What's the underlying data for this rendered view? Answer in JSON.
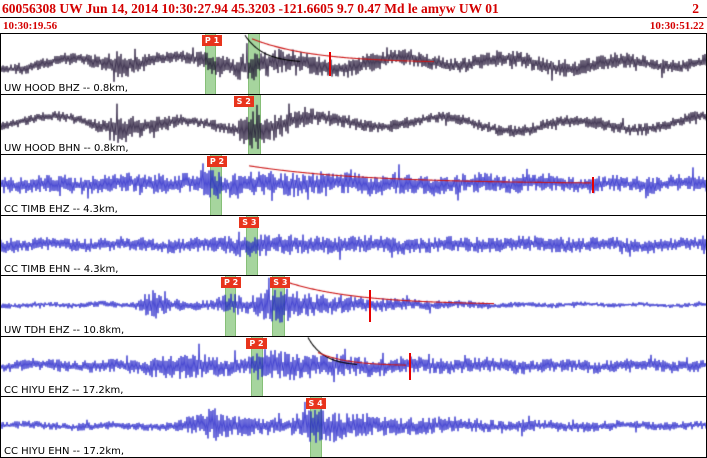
{
  "header": {
    "summary": "60056308 UW Jun 14, 2014 10:30:27.94   45.3203 -121.6605  9.7 0.47 Md le amyw UW 01",
    "page": "2"
  },
  "window": {
    "start": "10:30:19.56",
    "end": "10:30:51.22"
  },
  "colors": {
    "broadband_trace": "#190b2e",
    "shortperiod_trace": "#1f1fc8",
    "pick_band_green": "#97ce8d",
    "flag_red": "#e8341c",
    "pick_line_red": "#e80000",
    "coda_red": "#cc1414",
    "header_text_red": "#d40000"
  },
  "traces": [
    {
      "label": "UW HOOD BHZ -- 0.8km,",
      "color": "#190b2e",
      "seed": 101,
      "lf": {
        "amp": 4.5,
        "period": 110,
        "phase": 0.8
      },
      "envelope": [
        [
          0,
          5
        ],
        [
          0.1,
          6
        ],
        [
          0.145,
          7
        ],
        [
          0.165,
          14
        ],
        [
          0.185,
          10
        ],
        [
          0.21,
          7
        ],
        [
          0.27,
          6
        ],
        [
          0.295,
          12
        ],
        [
          0.33,
          10
        ],
        [
          0.355,
          15
        ],
        [
          0.4,
          11
        ],
        [
          0.47,
          9
        ],
        [
          0.55,
          8
        ],
        [
          0.65,
          7
        ],
        [
          0.78,
          8
        ],
        [
          0.9,
          7
        ],
        [
          1,
          6
        ]
      ],
      "bands": [
        {
          "x": 0.289,
          "w": 0.016
        },
        {
          "x": 0.35,
          "w": 0.018
        }
      ],
      "flags": [
        {
          "label": "P 1",
          "x": 0.285
        }
      ],
      "red_lines": [
        {
          "x": 0.467,
          "h": 0.4
        }
      ],
      "codas": [
        {
          "x0": 0.346,
          "x1": 0.425,
          "h": 0.46,
          "color": "#000000"
        },
        {
          "x0": 0.356,
          "x1": 0.615,
          "h": 0.4,
          "color": "#cc1414"
        }
      ]
    },
    {
      "label": "UW HOOD BHN -- 0.8km,",
      "color": "#190b2e",
      "seed": 102,
      "lf": {
        "amp": 5.5,
        "period": 130,
        "phase": 2.1
      },
      "envelope": [
        [
          0,
          4
        ],
        [
          0.13,
          5
        ],
        [
          0.16,
          13
        ],
        [
          0.175,
          16
        ],
        [
          0.2,
          8
        ],
        [
          0.27,
          5
        ],
        [
          0.33,
          6
        ],
        [
          0.36,
          20
        ],
        [
          0.375,
          14
        ],
        [
          0.42,
          9
        ],
        [
          0.5,
          6
        ],
        [
          0.62,
          5
        ],
        [
          0.8,
          6
        ],
        [
          1,
          5
        ]
      ],
      "bands": [
        {
          "x": 0.35,
          "w": 0.019
        }
      ],
      "flags": [
        {
          "label": "S 2",
          "x": 0.33
        }
      ],
      "red_lines": [],
      "codas": []
    },
    {
      "label": "CC TIMB EHZ -- 4.3km,",
      "color": "#1f1fc8",
      "seed": 103,
      "lf": {
        "amp": 1.5,
        "period": 70,
        "phase": 0
      },
      "envelope": [
        [
          0,
          8
        ],
        [
          0.25,
          9
        ],
        [
          0.3,
          13
        ],
        [
          0.34,
          12
        ],
        [
          0.42,
          11
        ],
        [
          0.55,
          10
        ],
        [
          0.7,
          9
        ],
        [
          0.85,
          8
        ],
        [
          1,
          8
        ]
      ],
      "bands": [
        {
          "x": 0.297,
          "w": 0.016
        }
      ],
      "flags": [
        {
          "label": "P 2",
          "x": 0.292
        }
      ],
      "red_lines": [
        {
          "x": 0.84,
          "h": 0.26
        }
      ],
      "codas": [
        {
          "x0": 0.352,
          "x1": 0.838,
          "h": 0.3,
          "color": "#cc1414"
        }
      ]
    },
    {
      "label": "CC TIMB EHN -- 4.3km,",
      "color": "#1f1fc8",
      "seed": 104,
      "lf": {
        "amp": 1.2,
        "period": 80,
        "phase": 1
      },
      "envelope": [
        [
          0,
          6
        ],
        [
          0.3,
          7
        ],
        [
          0.35,
          11
        ],
        [
          0.4,
          10
        ],
        [
          0.5,
          8
        ],
        [
          0.65,
          7
        ],
        [
          0.8,
          7
        ],
        [
          1,
          6
        ]
      ],
      "bands": [
        {
          "x": 0.348,
          "w": 0.017
        }
      ],
      "flags": [
        {
          "label": "S 3",
          "x": 0.338
        }
      ],
      "red_lines": [],
      "codas": []
    },
    {
      "label": "UW TDH EHZ -- 10.8km,",
      "color": "#1f1fc8",
      "seed": 105,
      "lf": {
        "amp": 0.8,
        "period": 60,
        "phase": 0.4
      },
      "envelope": [
        [
          0,
          2.5
        ],
        [
          0.19,
          3
        ],
        [
          0.215,
          16
        ],
        [
          0.235,
          8
        ],
        [
          0.26,
          4
        ],
        [
          0.3,
          5
        ],
        [
          0.325,
          10
        ],
        [
          0.36,
          9
        ],
        [
          0.395,
          19
        ],
        [
          0.43,
          12
        ],
        [
          0.49,
          8
        ],
        [
          0.58,
          5
        ],
        [
          0.7,
          3
        ],
        [
          0.85,
          2
        ],
        [
          1,
          2
        ]
      ],
      "bands": [
        {
          "x": 0.318,
          "w": 0.016
        },
        {
          "x": 0.384,
          "w": 0.019
        }
      ],
      "flags": [
        {
          "label": "P 2",
          "x": 0.312
        },
        {
          "label": "S 3",
          "x": 0.382
        }
      ],
      "red_lines": [
        {
          "x": 0.523,
          "h": 0.55
        }
      ],
      "codas": [
        {
          "x0": 0.4,
          "x1": 0.7,
          "h": 0.4,
          "color": "#cc1414"
        }
      ]
    },
    {
      "label": "CC HIYU EHZ -- 17.2km,",
      "color": "#1f1fc8",
      "seed": 106,
      "lf": {
        "amp": 1.3,
        "period": 75,
        "phase": 1.7
      },
      "envelope": [
        [
          0,
          5
        ],
        [
          0.2,
          7
        ],
        [
          0.25,
          13
        ],
        [
          0.285,
          12
        ],
        [
          0.31,
          9
        ],
        [
          0.35,
          8
        ],
        [
          0.365,
          15
        ],
        [
          0.4,
          13
        ],
        [
          0.45,
          11
        ],
        [
          0.55,
          8
        ],
        [
          0.68,
          7
        ],
        [
          0.85,
          6
        ],
        [
          1,
          6
        ]
      ],
      "bands": [
        {
          "x": 0.354,
          "w": 0.017
        }
      ],
      "flags": [
        {
          "label": "P 2",
          "x": 0.348
        }
      ],
      "red_lines": [
        {
          "x": 0.58,
          "h": 0.46
        }
      ],
      "codas": [
        {
          "x0": 0.436,
          "x1": 0.505,
          "h": 0.46,
          "color": "#000000"
        },
        {
          "x0": 0.45,
          "x1": 0.575,
          "h": 0.22,
          "color": "#cc1414"
        }
      ]
    },
    {
      "label": "CC HIYU EHN -- 17.2km,",
      "color": "#1f1fc8",
      "seed": 107,
      "lf": {
        "amp": 1.0,
        "period": 85,
        "phase": 2.6
      },
      "envelope": [
        [
          0,
          3.5
        ],
        [
          0.24,
          4
        ],
        [
          0.275,
          9
        ],
        [
          0.3,
          16
        ],
        [
          0.335,
          9
        ],
        [
          0.4,
          7
        ],
        [
          0.445,
          17
        ],
        [
          0.48,
          13
        ],
        [
          0.55,
          9
        ],
        [
          0.65,
          7
        ],
        [
          0.8,
          5
        ],
        [
          0.92,
          4
        ],
        [
          1,
          4
        ]
      ],
      "bands": [
        {
          "x": 0.438,
          "w": 0.018
        }
      ],
      "flags": [
        {
          "label": "S 4",
          "x": 0.432
        }
      ],
      "red_lines": [],
      "codas": []
    }
  ]
}
